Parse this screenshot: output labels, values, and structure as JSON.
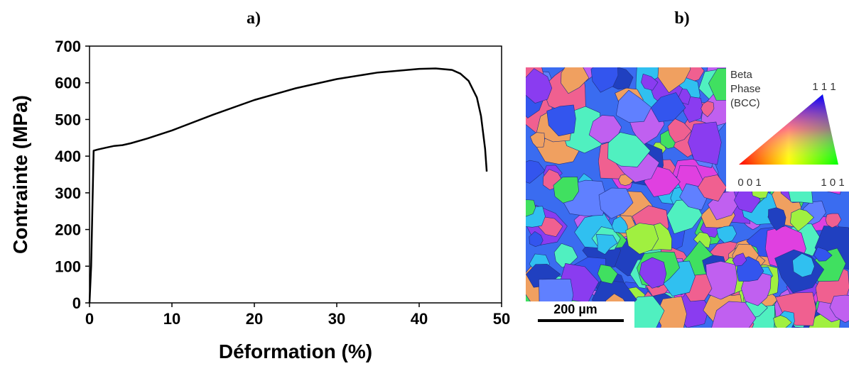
{
  "chart_data": {
    "type": "line",
    "title": "a)",
    "x_label": "Déformation (%)",
    "y_label": "Contrainte (MPa)",
    "x": [
      0,
      0.2,
      0.5,
      1,
      2,
      3,
      4,
      5,
      7,
      10,
      15,
      20,
      25,
      30,
      35,
      40,
      42,
      44,
      45,
      46,
      47,
      47.5,
      48,
      48.2
    ],
    "values": [
      0,
      100,
      415,
      418,
      423,
      428,
      430,
      435,
      448,
      470,
      513,
      553,
      585,
      610,
      628,
      638,
      639,
      635,
      625,
      605,
      560,
      510,
      420,
      358
    ],
    "color": "#000000",
    "xlim": [
      0,
      50
    ],
    "xticks": [
      0,
      10,
      20,
      30,
      40,
      50
    ],
    "ylim": [
      0,
      700
    ],
    "yticks": [
      0,
      100,
      200,
      300,
      400,
      500,
      600,
      700
    ]
  },
  "image_panel": {
    "label": "b)",
    "legend_title": [
      "Beta",
      "Phase",
      "(BCC)"
    ],
    "corner_top": "1 1 1",
    "corner_left": "0 0 1",
    "corner_right": "1 0 1",
    "scale_bar": "200 µm"
  }
}
